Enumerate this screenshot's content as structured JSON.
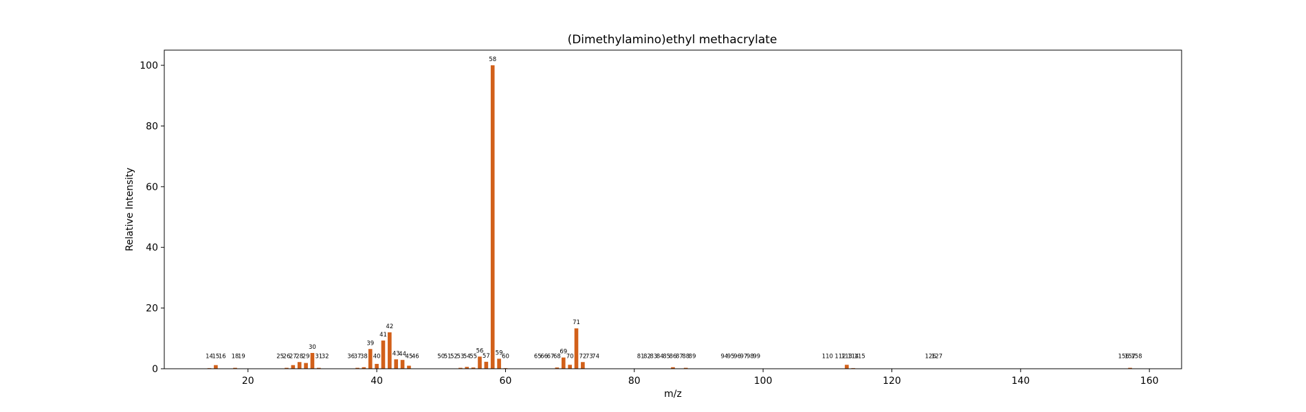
{
  "chart_data": {
    "type": "bar",
    "title": "(Dimethylamino)ethyl methacrylate",
    "xlabel": "m/z",
    "ylabel": "Relative Intensity",
    "xlim": [
      7,
      165
    ],
    "ylim": [
      0,
      105
    ],
    "xticks": [
      20,
      40,
      60,
      80,
      100,
      120,
      140,
      160
    ],
    "yticks": [
      0,
      20,
      40,
      60,
      80,
      100
    ],
    "bar_color": "#d2601a",
    "grid": false,
    "legend": "none",
    "peaks": [
      {
        "mz": 14,
        "intensity": 0.2
      },
      {
        "mz": 15,
        "intensity": 1.2
      },
      {
        "mz": 16,
        "intensity": 0.1
      },
      {
        "mz": 18,
        "intensity": 0.3
      },
      {
        "mz": 19,
        "intensity": 0.1
      },
      {
        "mz": 25,
        "intensity": 0.1
      },
      {
        "mz": 26,
        "intensity": 0.3
      },
      {
        "mz": 27,
        "intensity": 1.2
      },
      {
        "mz": 28,
        "intensity": 2.2
      },
      {
        "mz": 29,
        "intensity": 1.9
      },
      {
        "mz": 30,
        "intensity": 5.2
      },
      {
        "mz": 31,
        "intensity": 0.3
      },
      {
        "mz": 32,
        "intensity": 0.1
      },
      {
        "mz": 36,
        "intensity": 0.1
      },
      {
        "mz": 37,
        "intensity": 0.3
      },
      {
        "mz": 38,
        "intensity": 0.5
      },
      {
        "mz": 39,
        "intensity": 6.5
      },
      {
        "mz": 40,
        "intensity": 1.6
      },
      {
        "mz": 41,
        "intensity": 9.3
      },
      {
        "mz": 42,
        "intensity": 12.0
      },
      {
        "mz": 43,
        "intensity": 3.1
      },
      {
        "mz": 44,
        "intensity": 2.9
      },
      {
        "mz": 45,
        "intensity": 1.0
      },
      {
        "mz": 46,
        "intensity": 0.1
      },
      {
        "mz": 50,
        "intensity": 0.1
      },
      {
        "mz": 51,
        "intensity": 0.1
      },
      {
        "mz": 52,
        "intensity": 0.1
      },
      {
        "mz": 53,
        "intensity": 0.3
      },
      {
        "mz": 54,
        "intensity": 0.6
      },
      {
        "mz": 55,
        "intensity": 0.4
      },
      {
        "mz": 56,
        "intensity": 4.0
      },
      {
        "mz": 57,
        "intensity": 2.3
      },
      {
        "mz": 58,
        "intensity": 100
      },
      {
        "mz": 59,
        "intensity": 3.3
      },
      {
        "mz": 60,
        "intensity": 0.2
      },
      {
        "mz": 65,
        "intensity": 0.1
      },
      {
        "mz": 66,
        "intensity": 0.1
      },
      {
        "mz": 67,
        "intensity": 0.1
      },
      {
        "mz": 68,
        "intensity": 0.4
      },
      {
        "mz": 69,
        "intensity": 3.7
      },
      {
        "mz": 70,
        "intensity": 1.3
      },
      {
        "mz": 71,
        "intensity": 13.3
      },
      {
        "mz": 72,
        "intensity": 2.2
      },
      {
        "mz": 73,
        "intensity": 0.1
      },
      {
        "mz": 74,
        "intensity": 0.1
      },
      {
        "mz": 81,
        "intensity": 0.1
      },
      {
        "mz": 82,
        "intensity": 0.1
      },
      {
        "mz": 83,
        "intensity": 0.1
      },
      {
        "mz": 84,
        "intensity": 0.1
      },
      {
        "mz": 85,
        "intensity": 0.1
      },
      {
        "mz": 86,
        "intensity": 0.5
      },
      {
        "mz": 87,
        "intensity": 0.1
      },
      {
        "mz": 88,
        "intensity": 0.3
      },
      {
        "mz": 89,
        "intensity": 0.1
      },
      {
        "mz": 94,
        "intensity": 0.1
      },
      {
        "mz": 95,
        "intensity": 0.1
      },
      {
        "mz": 96,
        "intensity": 0.1
      },
      {
        "mz": 97,
        "intensity": 0.1
      },
      {
        "mz": 98,
        "intensity": 0.1
      },
      {
        "mz": 99,
        "intensity": 0.1
      },
      {
        "mz": 110,
        "intensity": 0.1
      },
      {
        "mz": 112,
        "intensity": 0.1
      },
      {
        "mz": 113,
        "intensity": 1.3
      },
      {
        "mz": 114,
        "intensity": 0.2
      },
      {
        "mz": 115,
        "intensity": 0.1
      },
      {
        "mz": 126,
        "intensity": 0.1
      },
      {
        "mz": 127,
        "intensity": 0.1
      },
      {
        "mz": 156,
        "intensity": 0.1
      },
      {
        "mz": 157,
        "intensity": 0.3
      },
      {
        "mz": 158,
        "intensity": 0.1
      }
    ]
  }
}
